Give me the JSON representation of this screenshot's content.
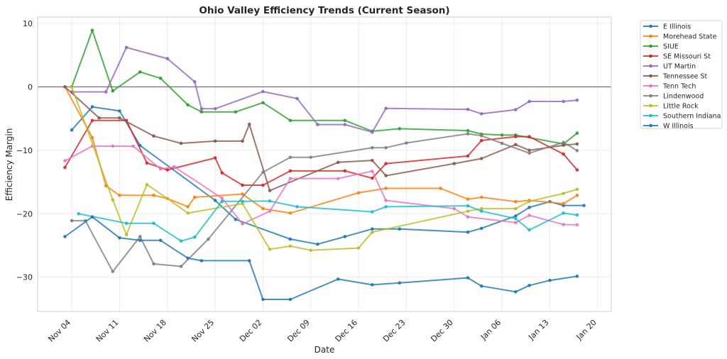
{
  "chart_data": {
    "type": "line",
    "title": "Ohio Valley Efficiency Trends (Current Season)",
    "xlabel": "Date",
    "ylabel": "Efficiency Margin",
    "xlim": [
      "Oct 30",
      "Jan 22"
    ],
    "ylim": [
      -35.4,
      11
    ],
    "x_ticks": [
      "Nov 04",
      "Nov 11",
      "Nov 18",
      "Nov 25",
      "Dec 02",
      "Dec 09",
      "Dec 16",
      "Dec 23",
      "Dec 30",
      "Jan 06",
      "Jan 13",
      "Jan 20"
    ],
    "y_ticks": [
      10,
      0,
      -10,
      -20,
      -30
    ],
    "y_tick_labels": [
      "10",
      "0",
      "−10",
      "−20",
      "−30"
    ],
    "grid": true,
    "reference_line_y": 0,
    "legend_position": "outside-upper-right",
    "series": [
      {
        "name": "E Illinois",
        "color": "#1f77b4",
        "points": [
          [
            "Nov 04",
            -6.8
          ],
          [
            "Nov 07",
            -3.15
          ],
          [
            "Nov 11",
            -3.8
          ],
          [
            "Nov 14",
            -9.25
          ],
          [
            "Nov 25",
            -17.9
          ],
          [
            "Nov 28",
            -20.9
          ],
          [
            "Dec 06",
            -24.0
          ],
          [
            "Dec 10",
            -24.8
          ],
          [
            "Dec 14",
            -23.6
          ],
          [
            "Dec 18",
            -22.4
          ],
          [
            "Dec 22",
            -22.4
          ],
          [
            "Jan 01",
            -22.9
          ],
          [
            "Jan 03",
            -22.3
          ],
          [
            "Jan 08",
            -20.35
          ],
          [
            "Jan 10",
            -19.0
          ],
          [
            "Jan 13",
            -18.1
          ],
          [
            "Jan 15",
            -18.7
          ],
          [
            "Jan 18",
            -18.7
          ]
        ]
      },
      {
        "name": "Morehead State",
        "color": "#ff7f0e",
        "points": [
          [
            "Nov 03",
            0
          ],
          [
            "Nov 07",
            -8.0
          ],
          [
            "Nov 09",
            -15.6
          ],
          [
            "Nov 11",
            -17.1
          ],
          [
            "Nov 16",
            -17.1
          ],
          [
            "Nov 18",
            -17.6
          ],
          [
            "Nov 21",
            -18.9
          ],
          [
            "Nov 22",
            -17.4
          ],
          [
            "Nov 29",
            -16.9
          ],
          [
            "Dec 02",
            -19.2
          ],
          [
            "Dec 06",
            -19.9
          ],
          [
            "Dec 16",
            -16.7
          ],
          [
            "Dec 20",
            -16.0
          ],
          [
            "Dec 28",
            -16.0
          ],
          [
            "Jan 01",
            -17.7
          ],
          [
            "Jan 03",
            -17.4
          ],
          [
            "Jan 08",
            -18.1
          ],
          [
            "Jan 10",
            -17.9
          ],
          [
            "Jan 15",
            -18.4
          ],
          [
            "Jan 17",
            -17.1
          ]
        ]
      },
      {
        "name": "SIUE",
        "color": "#2ca02c",
        "points": [
          [
            "Nov 04",
            0
          ],
          [
            "Nov 07",
            8.9
          ],
          [
            "Nov 10",
            -0.65
          ],
          [
            "Nov 14",
            2.35
          ],
          [
            "Nov 17",
            1.35
          ],
          [
            "Nov 21",
            -2.85
          ],
          [
            "Nov 23",
            -3.95
          ],
          [
            "Nov 28",
            -3.95
          ],
          [
            "Dec 02",
            -2.5
          ],
          [
            "Dec 06",
            -5.3
          ],
          [
            "Dec 14",
            -5.3
          ],
          [
            "Dec 18",
            -7.0
          ],
          [
            "Dec 22",
            -6.6
          ],
          [
            "Jan 01",
            -6.9
          ],
          [
            "Jan 03",
            -7.45
          ],
          [
            "Jan 06",
            -7.6
          ],
          [
            "Jan 08",
            -7.6
          ],
          [
            "Jan 15",
            -9.0
          ],
          [
            "Jan 17",
            -7.3
          ]
        ]
      },
      {
        "name": "SE Missouri St",
        "color": "#d62728",
        "points": [
          [
            "Nov 03",
            -12.7
          ],
          [
            "Nov 07",
            -5.3
          ],
          [
            "Nov 12",
            -5.3
          ],
          [
            "Nov 15",
            -12.0
          ],
          [
            "Nov 18",
            -13.1
          ],
          [
            "Nov 25",
            -11.2
          ],
          [
            "Nov 26",
            -13.55
          ],
          [
            "Nov 29",
            -15.5
          ],
          [
            "Dec 02",
            -15.5
          ],
          [
            "Dec 06",
            -13.25
          ],
          [
            "Dec 14",
            -13.25
          ],
          [
            "Dec 18",
            -14.4
          ],
          [
            "Dec 20",
            -12.1
          ],
          [
            "Jan 01",
            -10.9
          ],
          [
            "Jan 03",
            -8.45
          ],
          [
            "Jan 08",
            -7.85
          ],
          [
            "Jan 10",
            -7.85
          ],
          [
            "Jan 15",
            -10.6
          ],
          [
            "Jan 17",
            -13.1
          ]
        ]
      },
      {
        "name": "UT Martin",
        "color": "#9467bd",
        "points": [
          [
            "Nov 04",
            -0.8
          ],
          [
            "Nov 09",
            -0.8
          ],
          [
            "Nov 12",
            6.2
          ],
          [
            "Nov 18",
            4.45
          ],
          [
            "Nov 22",
            0.8
          ],
          [
            "Nov 23",
            -3.45
          ],
          [
            "Nov 25",
            -3.45
          ],
          [
            "Dec 02",
            -0.75
          ],
          [
            "Dec 07",
            -1.85
          ],
          [
            "Dec 10",
            -5.95
          ],
          [
            "Dec 14",
            -5.95
          ],
          [
            "Dec 18",
            -7.15
          ],
          [
            "Dec 20",
            -3.4
          ],
          [
            "Jan 01",
            -3.55
          ],
          [
            "Jan 03",
            -4.25
          ],
          [
            "Jan 08",
            -3.6
          ],
          [
            "Jan 10",
            -2.3
          ],
          [
            "Jan 15",
            -2.3
          ],
          [
            "Jan 17",
            -2.1
          ]
        ]
      },
      {
        "name": "Tennessee St",
        "color": "#8c564b",
        "points": [
          [
            "Nov 03",
            0
          ],
          [
            "Nov 08",
            -4.9
          ],
          [
            "Nov 11",
            -4.9
          ],
          [
            "Nov 16",
            -7.75
          ],
          [
            "Nov 20",
            -8.9
          ],
          [
            "Nov 25",
            -8.55
          ],
          [
            "Nov 29",
            -8.55
          ],
          [
            "Nov 30",
            -5.9
          ],
          [
            "Dec 03",
            -16.35
          ],
          [
            "Dec 13",
            -11.9
          ],
          [
            "Dec 18",
            -11.6
          ],
          [
            "Dec 20",
            -14.0
          ],
          [
            "Dec 30",
            -12.1
          ],
          [
            "Jan 03",
            -11.3
          ],
          [
            "Jan 08",
            -9.1
          ],
          [
            "Jan 10",
            -10.0
          ],
          [
            "Jan 15",
            -9.2
          ],
          [
            "Jan 17",
            -9.0
          ]
        ]
      },
      {
        "name": "Tenn Tech",
        "color": "#e377c2",
        "points": [
          [
            "Nov 03",
            -11.65
          ],
          [
            "Nov 07",
            -9.35
          ],
          [
            "Nov 10",
            -9.35
          ],
          [
            "Nov 13",
            -9.35
          ],
          [
            "Nov 17",
            -12.95
          ],
          [
            "Nov 19",
            -12.6
          ],
          [
            "Nov 26",
            -17.55
          ],
          [
            "Nov 29",
            -21.6
          ],
          [
            "Dec 03",
            -19.6
          ],
          [
            "Dec 06",
            -14.45
          ],
          [
            "Dec 13",
            -14.45
          ],
          [
            "Dec 18",
            -13.3
          ],
          [
            "Dec 20",
            -17.9
          ],
          [
            "Dec 30",
            -19.2
          ],
          [
            "Jan 01",
            -20.5
          ],
          [
            "Jan 08",
            -21.4
          ],
          [
            "Jan 10",
            -20.25
          ],
          [
            "Jan 15",
            -21.7
          ],
          [
            "Jan 17",
            -21.75
          ]
        ]
      },
      {
        "name": "Lindenwood",
        "color": "#7f7f7f",
        "points": [
          [
            "Nov 04",
            -21.1
          ],
          [
            "Nov 06",
            -21.1
          ],
          [
            "Nov 10",
            -29.1
          ],
          [
            "Nov 14",
            -23.6
          ],
          [
            "Nov 16",
            -27.9
          ],
          [
            "Nov 20",
            -28.3
          ],
          [
            "Nov 24",
            -24.0
          ],
          [
            "Dec 02",
            -13.45
          ],
          [
            "Dec 06",
            -11.1
          ],
          [
            "Dec 09",
            -11.1
          ],
          [
            "Dec 18",
            -9.6
          ],
          [
            "Dec 20",
            -9.6
          ],
          [
            "Dec 23",
            -8.85
          ],
          [
            "Jan 01",
            -7.4
          ],
          [
            "Jan 03",
            -7.7
          ],
          [
            "Jan 06",
            -8.9
          ],
          [
            "Jan 10",
            -10.45
          ],
          [
            "Jan 15",
            -8.75
          ],
          [
            "Jan 17",
            -10.05
          ]
        ]
      },
      {
        "name": "Little Rock",
        "color": "#bcbd22",
        "points": [
          [
            "Nov 04",
            0
          ],
          [
            "Nov 10",
            -17.8
          ],
          [
            "Nov 12",
            -23.3
          ],
          [
            "Nov 15",
            -15.4
          ],
          [
            "Nov 18",
            -17.6
          ],
          [
            "Nov 21",
            -19.9
          ],
          [
            "Nov 29",
            -18.4
          ],
          [
            "Dec 03",
            -25.6
          ],
          [
            "Dec 06",
            -25.1
          ],
          [
            "Dec 09",
            -25.75
          ],
          [
            "Dec 16",
            -25.4
          ],
          [
            "Dec 18",
            -22.9
          ],
          [
            "Jan 01",
            -19.6
          ],
          [
            "Jan 03",
            -19.2
          ],
          [
            "Jan 08",
            -19.2
          ],
          [
            "Jan 10",
            -18.05
          ],
          [
            "Jan 15",
            -16.8
          ],
          [
            "Jan 17",
            -16.15
          ]
        ]
      },
      {
        "name": "Southern Indiana",
        "color": "#17becf",
        "points": [
          [
            "Nov 05",
            -20.0
          ],
          [
            "Nov 12",
            -21.5
          ],
          [
            "Nov 16",
            -21.5
          ],
          [
            "Nov 20",
            -24.3
          ],
          [
            "Nov 22",
            -23.7
          ],
          [
            "Nov 26",
            -18.05
          ],
          [
            "Nov 29",
            -18.05
          ],
          [
            "Dec 03",
            -18.0
          ],
          [
            "Dec 07",
            -18.9
          ],
          [
            "Dec 18",
            -19.7
          ],
          [
            "Dec 20",
            -18.9
          ],
          [
            "Jan 01",
            -18.75
          ],
          [
            "Jan 03",
            -19.6
          ],
          [
            "Jan 08",
            -20.75
          ],
          [
            "Jan 10",
            -22.55
          ],
          [
            "Jan 15",
            -19.9
          ],
          [
            "Jan 17",
            -20.2
          ]
        ]
      },
      {
        "name": "W Illinois",
        "color": "#1f77b4",
        "points": [
          [
            "Nov 03",
            -23.6
          ],
          [
            "Nov 07",
            -20.5
          ],
          [
            "Nov 11",
            -23.8
          ],
          [
            "Nov 14",
            -24.2
          ],
          [
            "Nov 17",
            -24.2
          ],
          [
            "Nov 21",
            -27.0
          ],
          [
            "Nov 23",
            -27.4
          ],
          [
            "Nov 30",
            -27.4
          ],
          [
            "Dec 02",
            -33.5
          ],
          [
            "Dec 06",
            -33.5
          ],
          [
            "Dec 13",
            -30.3
          ],
          [
            "Dec 18",
            -31.2
          ],
          [
            "Dec 22",
            -30.9
          ],
          [
            "Jan 01",
            -30.1
          ],
          [
            "Jan 03",
            -31.4
          ],
          [
            "Jan 08",
            -32.3
          ],
          [
            "Jan 10",
            -31.3
          ],
          [
            "Jan 13",
            -30.5
          ],
          [
            "Jan 17",
            -29.85
          ]
        ]
      }
    ]
  }
}
